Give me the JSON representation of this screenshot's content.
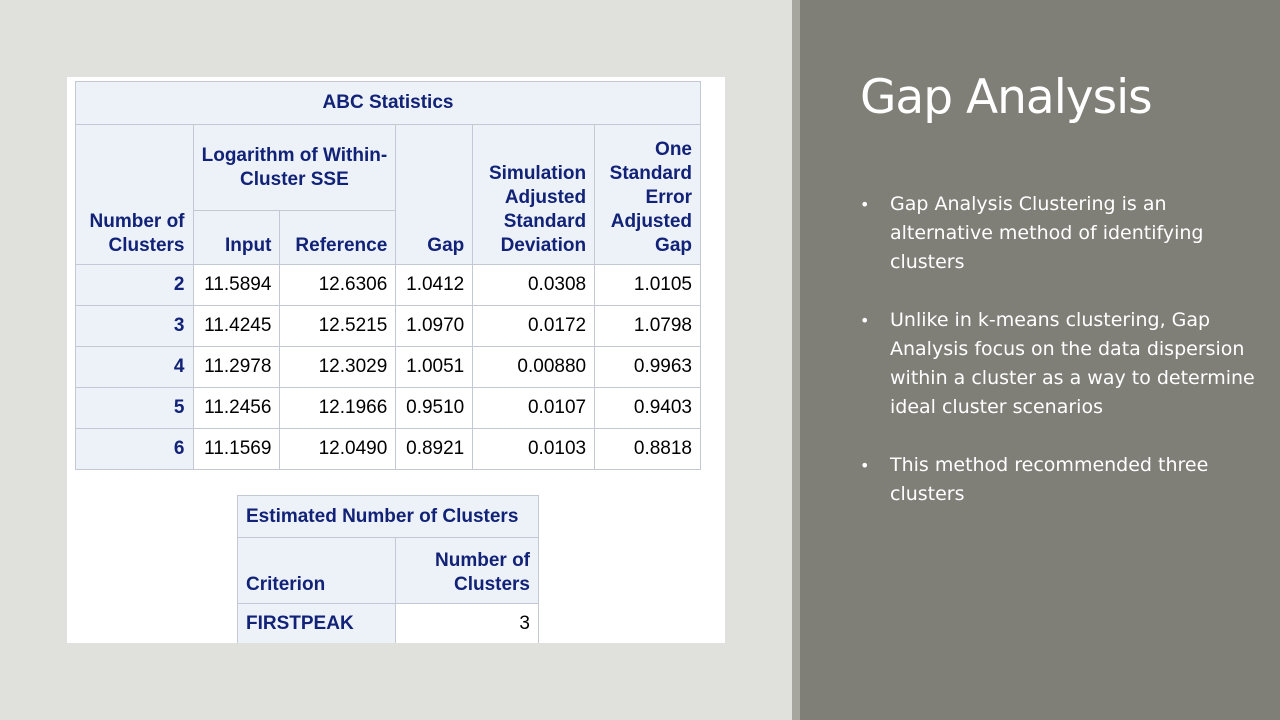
{
  "slide": {
    "title": "Gap Analysis",
    "bullet_glyph": "•",
    "bullets": [
      "Gap Analysis Clustering is an alternative method of identifying clusters",
      "Unlike in k-means clustering, Gap Analysis focus on the data dispersion within a cluster as a way to determine ideal cluster scenarios",
      "This method recommended three clusters"
    ]
  },
  "abc_table": {
    "title": "ABC Statistics",
    "headers": {
      "number_of_clusters": "Number of Clusters",
      "log_group": "Logarithm of Within-Cluster SSE",
      "input": "Input",
      "reference": "Reference",
      "gap": "Gap",
      "sim_adj_sd": "Simulation Adjusted Standard Deviation",
      "one_se_adj_gap": "One Standard Error Adjusted Gap"
    },
    "rows": [
      {
        "k": "2",
        "input": "11.5894",
        "reference": "12.6306",
        "gap": "1.0412",
        "sd": "0.0308",
        "adj_gap": "1.0105"
      },
      {
        "k": "3",
        "input": "11.4245",
        "reference": "12.5215",
        "gap": "1.0970",
        "sd": "0.0172",
        "adj_gap": "1.0798"
      },
      {
        "k": "4",
        "input": "11.2978",
        "reference": "12.3029",
        "gap": "1.0051",
        "sd": "0.00880",
        "adj_gap": "0.9963"
      },
      {
        "k": "5",
        "input": "11.2456",
        "reference": "12.1966",
        "gap": "0.9510",
        "sd": "0.0107",
        "adj_gap": "0.9403"
      },
      {
        "k": "6",
        "input": "11.1569",
        "reference": "12.0490",
        "gap": "0.8921",
        "sd": "0.0103",
        "adj_gap": "0.8818"
      }
    ]
  },
  "est_table": {
    "title": "Estimated Number of Clusters",
    "col_criterion": "Criterion",
    "col_number": "Number of Clusters",
    "rows": [
      {
        "criterion": "FIRSTPEAK",
        "number": "3"
      }
    ]
  },
  "colors": {
    "slide_background": "#e0e1dc",
    "right_panel": "#7f7f78",
    "table_header_bg": "#edf2f9",
    "table_header_text": "#112277",
    "table_border": "#c4c8d4"
  }
}
